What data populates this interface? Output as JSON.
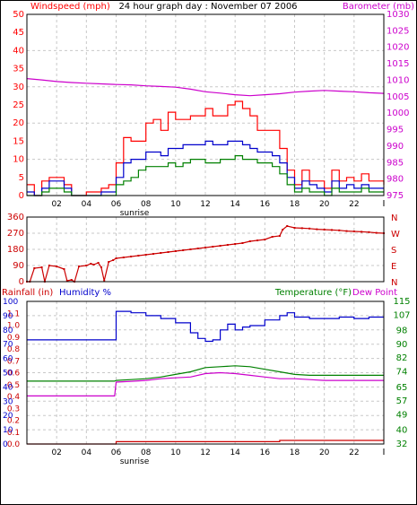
{
  "chart_data": [
    {
      "type": "line",
      "title": "24 hour graph day : November 07 2006",
      "y_left_label": "Windspeed (mph)",
      "y_right_label": "Barometer (mb)",
      "ylim_left": [
        0,
        50
      ],
      "ylim_right": [
        975,
        1030
      ],
      "y_left_ticks": [
        "0",
        "5",
        "10",
        "15",
        "20",
        "25",
        "30",
        "35",
        "40",
        "45",
        "50"
      ],
      "y_right_ticks": [
        "975",
        "980",
        "985",
        "990",
        "995",
        "1000",
        "1005",
        "1010",
        "1015",
        "1020",
        "1025",
        "1030"
      ],
      "x_ticks": [
        "02",
        "04",
        "06",
        "08",
        "10",
        "12",
        "14",
        "16",
        "18",
        "20",
        "22"
      ],
      "x_end_tick": "I",
      "x_annotation": "",
      "colors": {
        "wind_gust": "#ff0000",
        "wind_avg": "#0000cc",
        "wind_min": "#008000",
        "barometer": "#cc00cc",
        "grid": "#c8c8c8"
      },
      "series": [
        {
          "key": "wind_gust",
          "axis": "left",
          "x": [
            0,
            0.5,
            1,
            1.5,
            2,
            2.5,
            3,
            3.5,
            4,
            4.5,
            5,
            5.5,
            6,
            6.5,
            7,
            7.5,
            8,
            8.5,
            9,
            9.5,
            10,
            10.5,
            11,
            11.5,
            12,
            12.5,
            13,
            13.5,
            14,
            14.5,
            15,
            15.5,
            16,
            16.5,
            17,
            17.5,
            18,
            18.5,
            19,
            19.5,
            20,
            20.5,
            21,
            21.5,
            22,
            22.5,
            23,
            23.5,
            24
          ],
          "values": [
            3,
            0,
            4,
            5,
            5,
            3,
            0,
            0,
            1,
            1,
            2,
            3,
            9,
            16,
            15,
            15,
            20,
            21,
            18,
            23,
            21,
            21,
            22,
            22,
            24,
            22,
            22,
            25,
            26,
            24,
            22,
            18,
            18,
            18,
            13,
            7,
            3,
            7,
            4,
            4,
            2,
            7,
            4,
            5,
            4,
            6,
            4,
            4,
            3
          ]
        },
        {
          "key": "wind_avg",
          "axis": "left",
          "x": [
            0,
            0.5,
            1,
            1.5,
            2,
            2.5,
            3,
            3.5,
            4,
            4.5,
            5,
            5.5,
            6,
            6.5,
            7,
            7.5,
            8,
            8.5,
            9,
            9.5,
            10,
            10.5,
            11,
            11.5,
            12,
            12.5,
            13,
            13.5,
            14,
            14.5,
            15,
            15.5,
            16,
            16.5,
            17,
            17.5,
            18,
            18.5,
            19,
            19.5,
            20,
            20.5,
            21,
            21.5,
            22,
            22.5,
            23,
            23.5,
            24
          ],
          "values": [
            1,
            0,
            2,
            4,
            4,
            2,
            0,
            0,
            0,
            0,
            1,
            1,
            5,
            9,
            10,
            10,
            12,
            12,
            11,
            13,
            13,
            14,
            14,
            14,
            15,
            14,
            14,
            15,
            15,
            14,
            13,
            12,
            12,
            11,
            9,
            5,
            2,
            4,
            3,
            2,
            1,
            4,
            2,
            3,
            2,
            3,
            2,
            2,
            2
          ]
        },
        {
          "key": "wind_min",
          "axis": "left",
          "x": [
            0,
            0.5,
            1,
            1.5,
            2,
            2.5,
            3,
            3.5,
            4,
            4.5,
            5,
            5.5,
            6,
            6.5,
            7,
            7.5,
            8,
            8.5,
            9,
            9.5,
            10,
            10.5,
            11,
            11.5,
            12,
            12.5,
            13,
            13.5,
            14,
            14.5,
            15,
            15.5,
            16,
            16.5,
            17,
            17.5,
            18,
            18.5,
            19,
            19.5,
            20,
            20.5,
            21,
            21.5,
            22,
            22.5,
            23,
            23.5,
            24
          ],
          "values": [
            0,
            0,
            1,
            2,
            2,
            1,
            0,
            0,
            0,
            0,
            0,
            0,
            3,
            4,
            5,
            7,
            8,
            8,
            8,
            9,
            8,
            9,
            10,
            10,
            9,
            9,
            10,
            10,
            11,
            10,
            10,
            9,
            9,
            8,
            6,
            3,
            1,
            2,
            1,
            1,
            0,
            2,
            1,
            1,
            1,
            2,
            1,
            1,
            1
          ]
        },
        {
          "key": "barometer",
          "axis": "right",
          "x": [
            0,
            1,
            2,
            3,
            4,
            5,
            6,
            7,
            8,
            9,
            10,
            11,
            12,
            13,
            14,
            15,
            16,
            17,
            18,
            19,
            20,
            21,
            22,
            23,
            24
          ],
          "values": [
            1010.5,
            1010.1,
            1009.6,
            1009.3,
            1009.1,
            1008.9,
            1008.7,
            1008.6,
            1008.3,
            1008.1,
            1007.9,
            1007.3,
            1006.5,
            1006.1,
            1005.6,
            1005.3,
            1005.6,
            1005.9,
            1006.4,
            1006.7,
            1006.9,
            1006.7,
            1006.5,
            1006.2,
            1006.0
          ]
        }
      ]
    },
    {
      "type": "scatter",
      "y_left_ticks": [
        "360",
        "270",
        "180",
        "90",
        "0"
      ],
      "ylim_left": [
        0,
        360
      ],
      "y_right_ticks": [
        "N",
        "W",
        "S",
        "E",
        "N"
      ],
      "colors": {
        "direction": "#cc0000"
      },
      "series": [
        {
          "key": "wind_direction",
          "x": [
            0,
            0.2,
            0.5,
            1,
            1.2,
            1.5,
            2,
            2.5,
            2.7,
            3,
            3.2,
            3.5,
            4,
            4.3,
            4.5,
            4.8,
            5,
            5.2,
            5.5,
            5.8,
            6,
            6.5,
            7,
            7.5,
            8,
            8.5,
            9,
            9.5,
            10,
            10.5,
            11,
            11.5,
            12,
            12.5,
            13,
            13.5,
            14,
            14.5,
            15,
            15.5,
            16,
            16.5,
            17,
            17.2,
            17.5,
            18,
            18.5,
            19,
            19.5,
            20,
            20.5,
            21,
            21.5,
            22,
            22.5,
            23,
            23.5,
            24
          ],
          "values": [
            0,
            0,
            75,
            80,
            0,
            90,
            85,
            70,
            5,
            10,
            0,
            85,
            90,
            100,
            95,
            105,
            80,
            5,
            110,
            120,
            130,
            135,
            140,
            145,
            150,
            155,
            160,
            165,
            170,
            175,
            180,
            185,
            190,
            195,
            200,
            205,
            210,
            215,
            225,
            230,
            235,
            250,
            255,
            290,
            310,
            300,
            298,
            296,
            292,
            290,
            288,
            286,
            282,
            280,
            278,
            276,
            272,
            270
          ]
        }
      ]
    },
    {
      "type": "line",
      "y_left_label": "Rainfall (in)",
      "y_mid_label": "Humidity %",
      "y_right_label_1": "Temperature (°F)",
      "y_right_label_2": "Dew Point",
      "ylim_rain": [
        0,
        1.2
      ],
      "ylim_humidity": [
        0,
        100
      ],
      "ylim_temp": [
        32,
        115
      ],
      "y_rain_ticks": [
        "0.0",
        "0.1",
        "0.2",
        "0.3",
        "0.4",
        "0.5",
        "0.6",
        "0.7",
        "0.8",
        "0.9",
        "1.0",
        "1.1"
      ],
      "y_humidity_ticks": [
        "0",
        "10",
        "20",
        "30",
        "40",
        "50",
        "60",
        "70",
        "80",
        "90",
        "100"
      ],
      "y_temp_ticks": [
        "32",
        "40",
        "49",
        "57",
        "65",
        "74",
        "82",
        "90",
        "98",
        "107",
        "115"
      ],
      "x_ticks": [
        "02",
        "04",
        "06",
        "08",
        "10",
        "12",
        "14",
        "16",
        "18",
        "20",
        "22"
      ],
      "x_end_tick": "I",
      "x_annotation": "sunrise",
      "colors": {
        "rain": "#cc0000",
        "humidity": "#0000cc",
        "temperature": "#008000",
        "dewpoint": "#cc00cc"
      },
      "series": [
        {
          "key": "rain",
          "axis": "rain",
          "x": [
            0,
            5.9,
            6,
            16.8,
            17,
            24
          ],
          "values": [
            0,
            0,
            0.02,
            0.02,
            0.03,
            0.03
          ]
        },
        {
          "key": "humidity",
          "axis": "humidity",
          "x": [
            0,
            5.9,
            6,
            7,
            8,
            9,
            10,
            11,
            11.5,
            12,
            12.5,
            13,
            13.5,
            14,
            14.5,
            15,
            16,
            17,
            17.5,
            18,
            19,
            20,
            21,
            22,
            23,
            24
          ],
          "values": [
            73,
            73,
            93,
            92,
            90,
            88,
            85,
            78,
            74,
            72,
            73,
            80,
            84,
            80,
            82,
            83,
            87,
            90,
            92,
            89,
            88,
            88,
            89,
            88,
            89,
            89
          ]
        },
        {
          "key": "temperature",
          "axis": "temp",
          "x": [
            0,
            2,
            4,
            5.9,
            6,
            7,
            8,
            9,
            10,
            11,
            12,
            13,
            14,
            15,
            16,
            17,
            18,
            19,
            20,
            21,
            22,
            23,
            24
          ],
          "values": [
            68.6,
            68.6,
            68.6,
            68.6,
            69,
            69.5,
            70,
            71,
            72.5,
            74,
            76.5,
            77,
            77.5,
            77,
            75.5,
            74,
            72.5,
            72,
            72,
            72,
            72,
            72,
            72
          ]
        },
        {
          "key": "dewpoint",
          "axis": "temp",
          "x": [
            0,
            2,
            4,
            5.9,
            6,
            7,
            8,
            9,
            10,
            11,
            12,
            13,
            14,
            15,
            16,
            17,
            18,
            19,
            20,
            21,
            22,
            23,
            24
          ],
          "values": [
            60,
            60,
            60,
            60,
            68,
            68.5,
            69,
            70,
            70.5,
            71,
            73,
            73.5,
            73,
            72,
            71,
            70,
            70,
            69.5,
            69,
            69,
            69,
            69,
            69
          ]
        }
      ]
    }
  ]
}
